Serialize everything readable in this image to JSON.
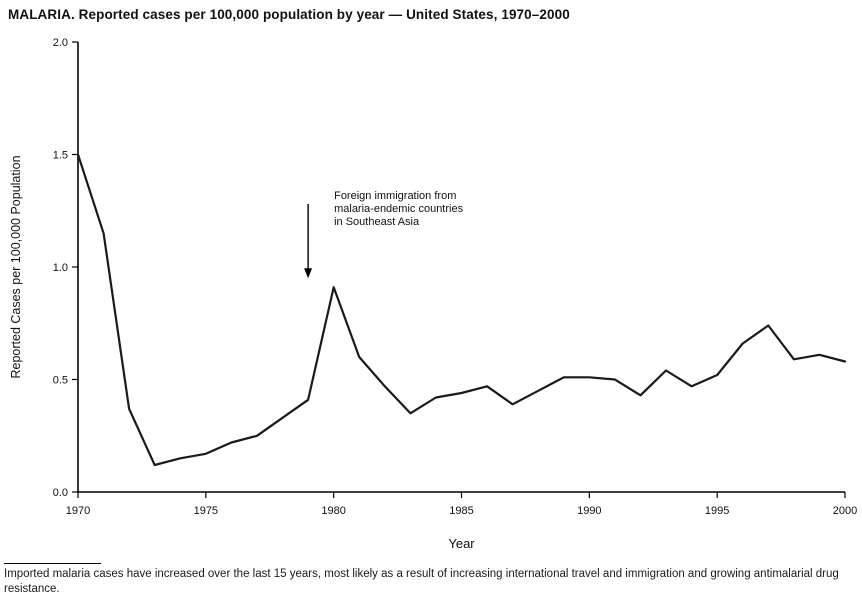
{
  "title": "MALARIA. Reported cases per 100,000 population by year — United States, 1970–2000",
  "footnote": "Imported malaria cases have increased over the last 15 years, most likely as a result of increasing international travel and immigration and growing antimalarial drug resistance.",
  "chart_data": {
    "type": "line",
    "title": "MALARIA. Reported cases per 100,000 population by year — United States, 1970–2000",
    "xlabel": "Year",
    "ylabel": "Reported Cases per 100,000 Population",
    "xlim": [
      1970,
      2000
    ],
    "ylim": [
      0,
      2.0
    ],
    "x_ticks": [
      1970,
      1975,
      1980,
      1985,
      1990,
      1995,
      2000
    ],
    "y_ticks": [
      0.0,
      0.5,
      1.0,
      1.5,
      2.0
    ],
    "y_tick_labels": [
      "0.0",
      "0.5",
      "1.0",
      "1.5",
      "2.0"
    ],
    "grid": false,
    "legend": null,
    "line_color": "#1a1a1a",
    "x": [
      1970,
      1971,
      1972,
      1973,
      1974,
      1975,
      1976,
      1977,
      1978,
      1979,
      1980,
      1981,
      1982,
      1983,
      1984,
      1985,
      1986,
      1987,
      1988,
      1989,
      1990,
      1991,
      1992,
      1993,
      1994,
      1995,
      1996,
      1997,
      1998,
      1999,
      2000
    ],
    "values": [
      1.5,
      1.15,
      0.37,
      0.12,
      0.15,
      0.17,
      0.22,
      0.25,
      0.33,
      0.41,
      0.91,
      0.6,
      0.47,
      0.35,
      0.42,
      0.44,
      0.47,
      0.39,
      0.45,
      0.51,
      0.51,
      0.5,
      0.43,
      0.54,
      0.47,
      0.52,
      0.66,
      0.74,
      0.59,
      0.61,
      0.58
    ],
    "annotation": {
      "text_lines": [
        "Foreign immigration from",
        "malaria-endemic countries",
        "in Southeast Asia"
      ],
      "arrow_year": 1979,
      "arrow_from_value": 1.28,
      "arrow_to_value": 0.95
    }
  }
}
